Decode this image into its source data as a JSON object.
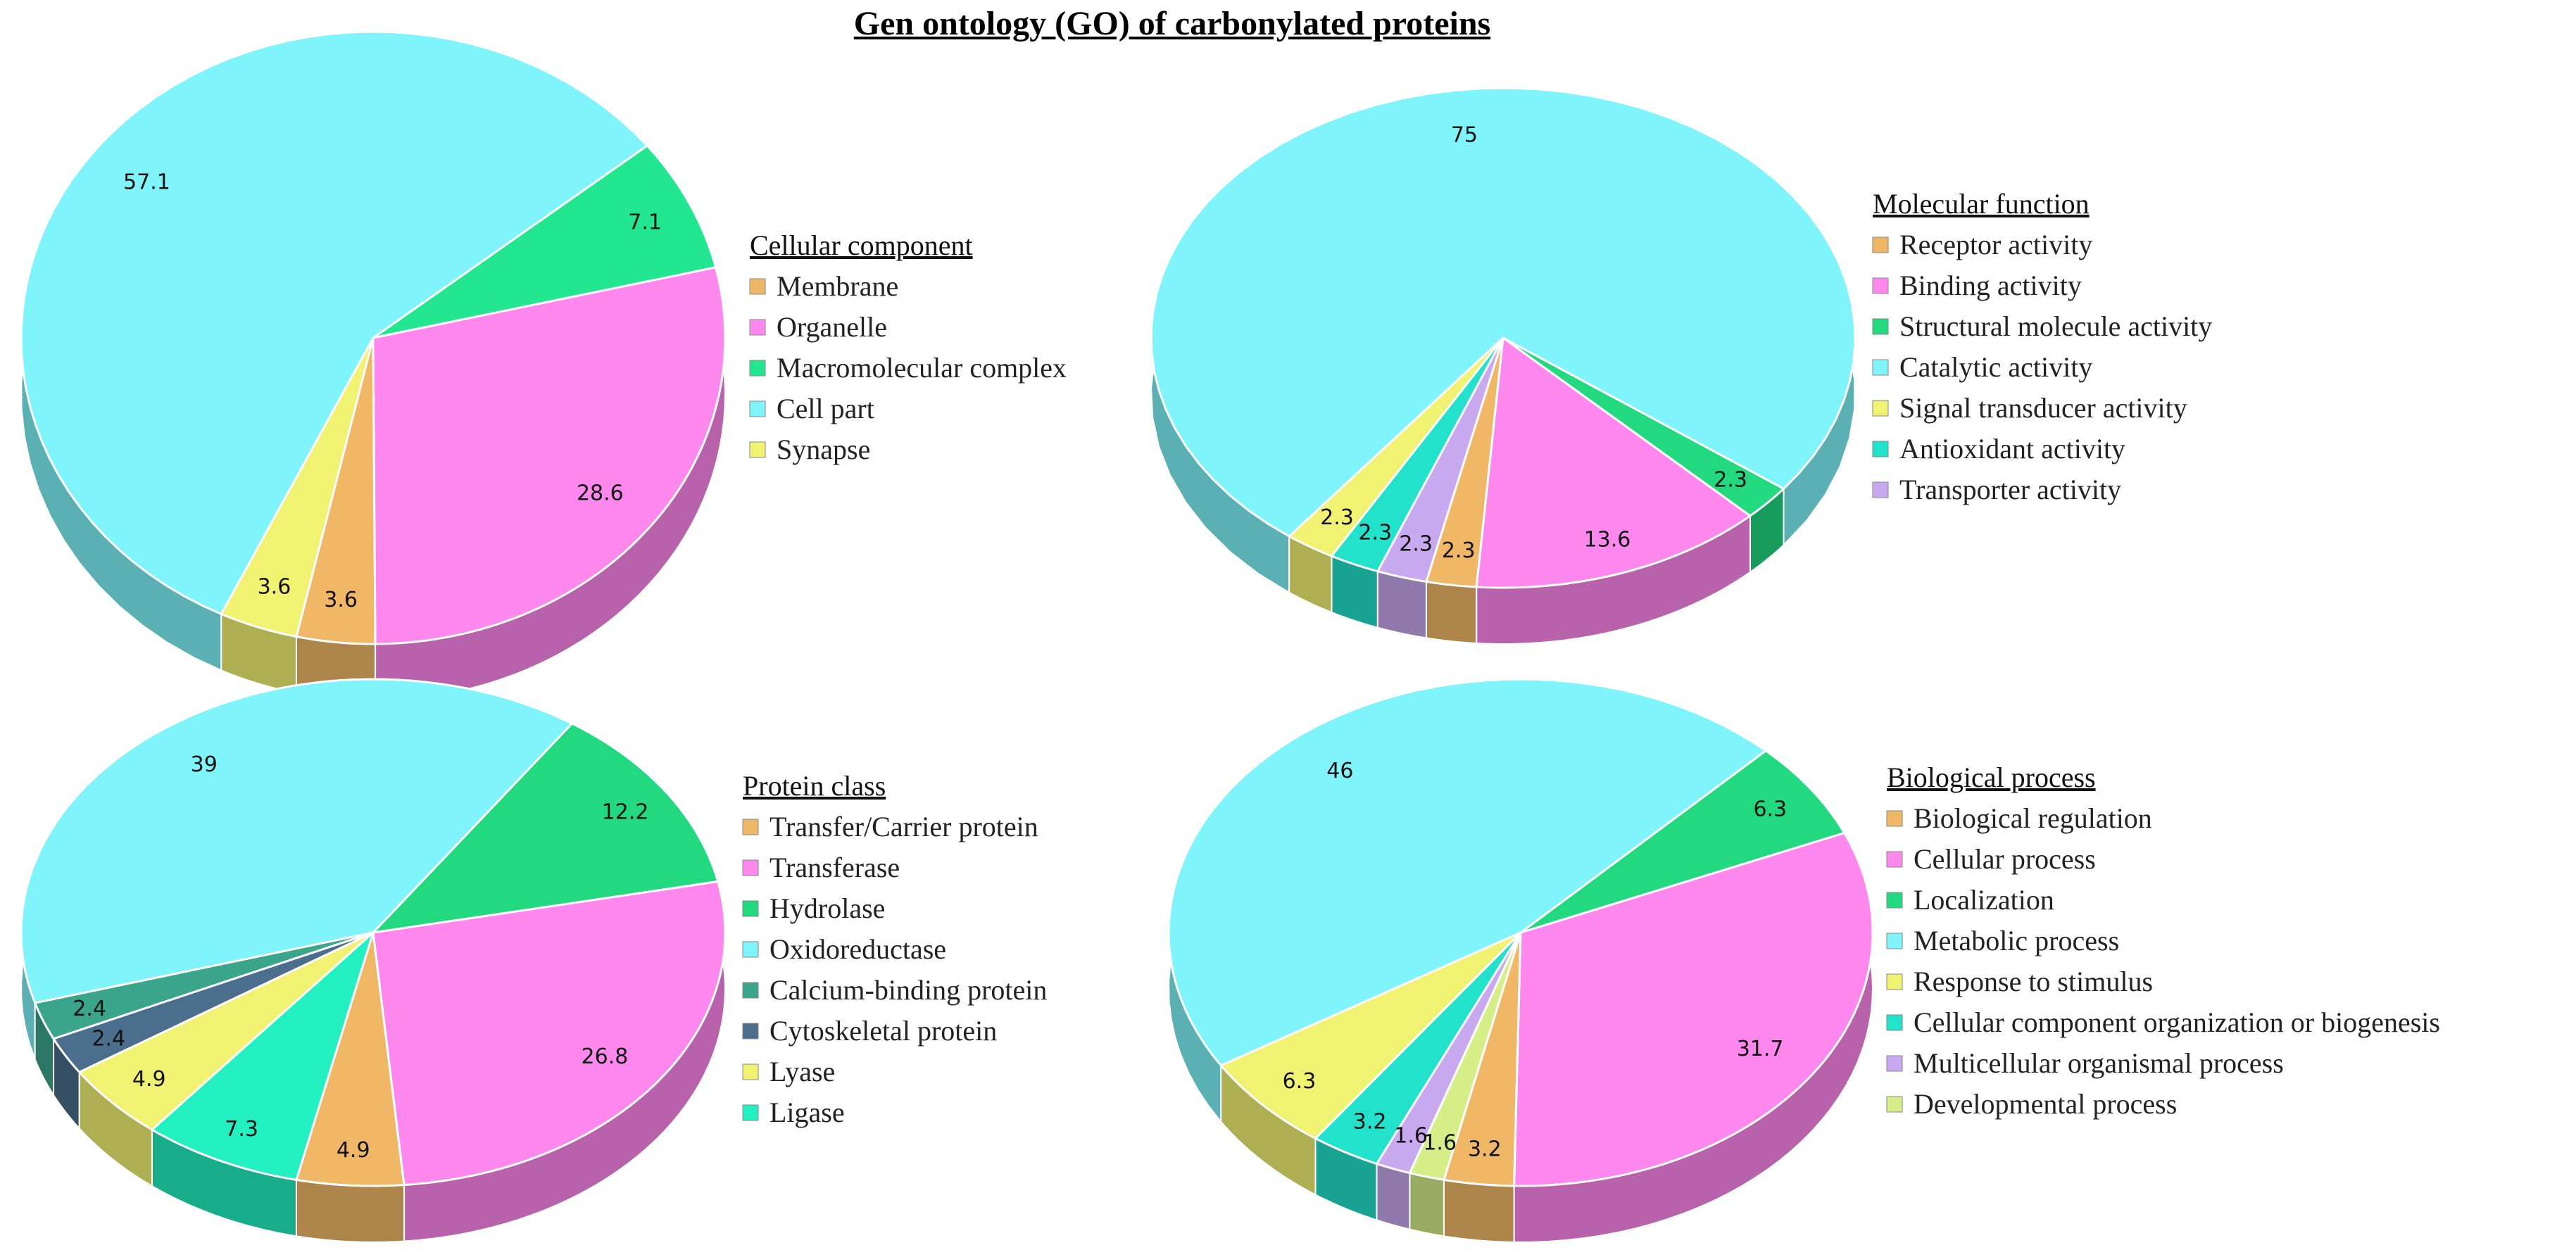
{
  "title": "Gen ontology (GO) of carbonylated proteins",
  "chart_data": [
    {
      "type": "pie",
      "title": "Cellular component",
      "series": [
        {
          "label": "Membrane",
          "value": 3.6,
          "color": "#f0b866"
        },
        {
          "label": "Organelle",
          "value": 28.6,
          "color": "#ff88ee"
        },
        {
          "label": "Macromolecular complex",
          "value": 7.1,
          "color": "#22e690"
        },
        {
          "label": "Cell part",
          "value": 57.1,
          "color": "#7ff4fa"
        },
        {
          "label": "Synapse",
          "value": 3.6,
          "color": "#f2f272"
        }
      ]
    },
    {
      "type": "pie",
      "title": "Molecular function",
      "series": [
        {
          "label": "Receptor activity",
          "value": 2.3,
          "color": "#f0b866"
        },
        {
          "label": "Binding activity",
          "value": 13.6,
          "color": "#ff88ee"
        },
        {
          "label": "Structural molecule activity",
          "value": 2.3,
          "color": "#22d980"
        },
        {
          "label": "Catalytic activity",
          "value": 75,
          "color": "#7ff4fa"
        },
        {
          "label": "Signal transducer activity",
          "value": 2.3,
          "color": "#f2f272"
        },
        {
          "label": "Antioxidant activity",
          "value": 2.3,
          "color": "#22e2cc"
        },
        {
          "label": "Transporter activity",
          "value": 2.3,
          "color": "#c8a8ee"
        }
      ]
    },
    {
      "type": "pie",
      "title": "Protein class",
      "series": [
        {
          "label": "Transfer/Carrier protein",
          "value": 4.9,
          "color": "#f0b866"
        },
        {
          "label": "Transferase",
          "value": 26.8,
          "color": "#ff88ee"
        },
        {
          "label": "Hydrolase",
          "value": 12.2,
          "color": "#22d980"
        },
        {
          "label": "Oxidoreductase",
          "value": 39,
          "color": "#7ff4fa"
        },
        {
          "label": "Calcium-binding protein",
          "value": 2.4,
          "color": "#3aa58a"
        },
        {
          "label": "Cytoskeletal protein",
          "value": 2.4,
          "color": "#4a6e8c"
        },
        {
          "label": "Lyase",
          "value": 4.9,
          "color": "#f2f272"
        },
        {
          "label": "Ligase",
          "value": 7.3,
          "color": "#22f0c0"
        }
      ]
    },
    {
      "type": "pie",
      "title": "Biological process",
      "series": [
        {
          "label": "Biological regulation",
          "value": 3.2,
          "color": "#f0b866"
        },
        {
          "label": "Cellular process",
          "value": 31.7,
          "color": "#ff88ee"
        },
        {
          "label": "Localization",
          "value": 6.3,
          "color": "#22d980"
        },
        {
          "label": "Metabolic process",
          "value": 46,
          "color": "#7ff4fa"
        },
        {
          "label": "Response to stimulus",
          "value": 6.3,
          "color": "#f2f272"
        },
        {
          "label": "Cellular component organization or biogenesis",
          "value": 3.2,
          "color": "#22e2cc"
        },
        {
          "label": "Multicellular organismal process",
          "value": 1.6,
          "color": "#c8a8ee"
        },
        {
          "label": "Developmental process",
          "value": 1.6,
          "color": "#d6ee88"
        }
      ]
    }
  ]
}
